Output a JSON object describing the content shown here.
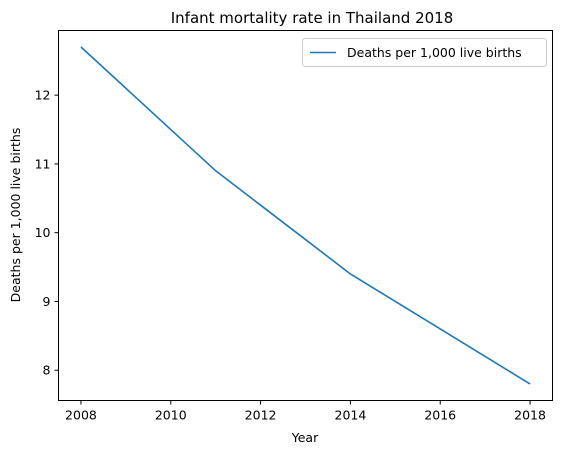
{
  "chart_data": {
    "type": "line",
    "title": "Infant mortality rate in Thailand 2018",
    "xlabel": "Year",
    "ylabel": "Deaths per 1,000 live births",
    "xlim": [
      2007.5,
      2018.5
    ],
    "ylim": [
      7.56,
      12.94
    ],
    "xticks": [
      2008,
      2010,
      2012,
      2014,
      2016,
      2018
    ],
    "yticks": [
      8,
      9,
      10,
      11,
      12
    ],
    "grid": false,
    "legend_position": "top-right",
    "series": [
      {
        "name": "Deaths per 1,000 live births",
        "color": "#1f77b4",
        "x": [
          2008,
          2009,
          2010,
          2011,
          2012,
          2013,
          2014,
          2015,
          2016,
          2017,
          2018
        ],
        "y": [
          12.7,
          12.1,
          11.5,
          10.9,
          10.4,
          9.9,
          9.4,
          9.0,
          8.6,
          8.2,
          7.8
        ]
      }
    ]
  }
}
